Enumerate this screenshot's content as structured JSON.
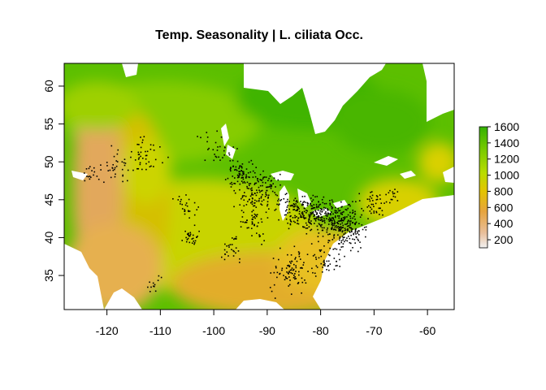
{
  "chart_data": {
    "type": "heatmap",
    "title": "Temp. Seasonality | L. ciliata Occ.",
    "xlabel": "",
    "ylabel": "",
    "xlim": [
      -128,
      -55
    ],
    "ylim": [
      30.5,
      63
    ],
    "x_ticks": [
      "-120",
      "-110",
      "-100",
      "-90",
      "-80",
      "-70",
      "-60"
    ],
    "x_tick_values": [
      -120,
      -110,
      -100,
      -90,
      -80,
      -70,
      -60
    ],
    "y_ticks": [
      "35",
      "40",
      "45",
      "50",
      "55",
      "60"
    ],
    "y_tick_values": [
      35,
      40,
      45,
      50,
      55,
      60
    ],
    "legend": {
      "position": "right",
      "range": [
        100,
        1600
      ],
      "tick_labels": [
        "1600",
        "1400",
        "1200",
        "1000",
        "800",
        "600",
        "400",
        "200"
      ],
      "tick_values": [
        1600,
        1400,
        1200,
        1000,
        800,
        600,
        400,
        200
      ],
      "colors": [
        "#f2f2f2",
        "#e8bf9c",
        "#e6a43e",
        "#e3c400",
        "#b8dc00",
        "#7ccb00",
        "#33b100"
      ]
    },
    "occurrence_color": "#000000",
    "occurrence_clusters": [
      {
        "lon": -75.5,
        "lat": 41.5,
        "spread": 2.4,
        "n": 220
      },
      {
        "lon": -80.5,
        "lat": 42.8,
        "spread": 2.2,
        "n": 160
      },
      {
        "lon": -84.5,
        "lat": 43.5,
        "spread": 1.8,
        "n": 90
      },
      {
        "lon": -91.0,
        "lat": 46.0,
        "spread": 2.6,
        "n": 140
      },
      {
        "lon": -95.0,
        "lat": 48.5,
        "spread": 1.8,
        "n": 70
      },
      {
        "lon": -93.0,
        "lat": 42.0,
        "spread": 2.0,
        "n": 50
      },
      {
        "lon": -85.0,
        "lat": 35.5,
        "spread": 2.5,
        "n": 90
      },
      {
        "lon": -78.5,
        "lat": 37.5,
        "spread": 1.8,
        "n": 50
      },
      {
        "lon": -70.0,
        "lat": 44.5,
        "spread": 1.4,
        "n": 40
      },
      {
        "lon": -104.5,
        "lat": 40.0,
        "spread": 1.2,
        "n": 30
      },
      {
        "lon": -105.5,
        "lat": 44.0,
        "spread": 1.5,
        "n": 25
      },
      {
        "lon": -113.5,
        "lat": 51.0,
        "spread": 2.2,
        "n": 45
      },
      {
        "lon": -118.0,
        "lat": 49.0,
        "spread": 2.0,
        "n": 30
      },
      {
        "lon": -122.5,
        "lat": 48.5,
        "spread": 1.2,
        "n": 18
      },
      {
        "lon": -111.0,
        "lat": 34.0,
        "spread": 1.0,
        "n": 12
      },
      {
        "lon": -97.0,
        "lat": 38.5,
        "spread": 1.5,
        "n": 25
      },
      {
        "lon": -100.0,
        "lat": 52.0,
        "spread": 2.5,
        "n": 30
      },
      {
        "lon": -66.5,
        "lat": 45.5,
        "spread": 1.0,
        "n": 15
      }
    ]
  }
}
